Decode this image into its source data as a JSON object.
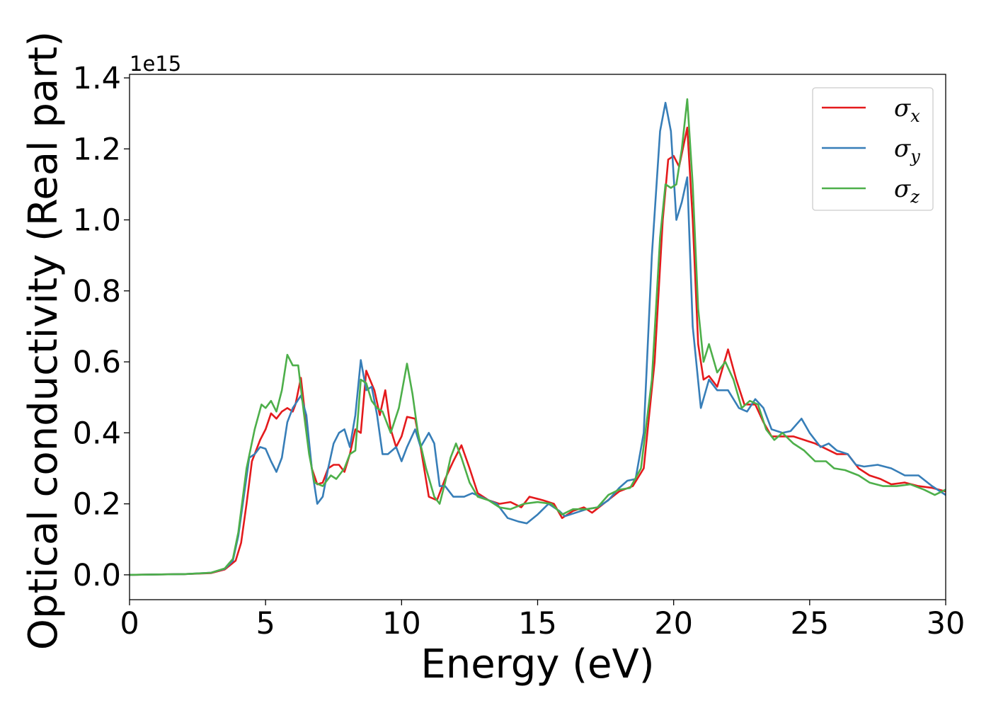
{
  "chart_data": {
    "type": "line",
    "xlabel": "Energy (eV)",
    "ylabel": "Optical conductivity (Real part)",
    "y_offset_text": "1e15",
    "xlim": [
      0,
      30
    ],
    "ylim": [
      -0.07,
      1.41
    ],
    "x_ticks": [
      0,
      5,
      10,
      15,
      20,
      25,
      30
    ],
    "x_tick_labels": [
      "0",
      "5",
      "10",
      "15",
      "20",
      "25",
      "30"
    ],
    "y_ticks": [
      0.0,
      0.2,
      0.4,
      0.6,
      0.8,
      1.0,
      1.2,
      1.4
    ],
    "y_tick_labels": [
      "0.0",
      "0.2",
      "0.4",
      "0.6",
      "0.8",
      "1.0",
      "1.2",
      "1.4"
    ],
    "grid": false,
    "legend_position": "top-right",
    "series": [
      {
        "name": "σx",
        "symbol": "σ",
        "subscript": "x",
        "color": "#e41a1c",
        "points": [
          [
            0,
            0
          ],
          [
            2,
            0.002
          ],
          [
            3,
            0.005
          ],
          [
            3.5,
            0.015
          ],
          [
            3.9,
            0.04
          ],
          [
            4.1,
            0.09
          ],
          [
            4.3,
            0.2
          ],
          [
            4.5,
            0.32
          ],
          [
            4.8,
            0.38
          ],
          [
            5.0,
            0.41
          ],
          [
            5.2,
            0.455
          ],
          [
            5.4,
            0.44
          ],
          [
            5.6,
            0.46
          ],
          [
            5.8,
            0.47
          ],
          [
            6.0,
            0.46
          ],
          [
            6.1,
            0.48
          ],
          [
            6.3,
            0.555
          ],
          [
            6.5,
            0.42
          ],
          [
            6.7,
            0.3
          ],
          [
            6.9,
            0.255
          ],
          [
            7.1,
            0.26
          ],
          [
            7.3,
            0.3
          ],
          [
            7.5,
            0.31
          ],
          [
            7.7,
            0.31
          ],
          [
            7.9,
            0.29
          ],
          [
            8.1,
            0.34
          ],
          [
            8.3,
            0.41
          ],
          [
            8.5,
            0.4
          ],
          [
            8.7,
            0.575
          ],
          [
            9.0,
            0.52
          ],
          [
            9.2,
            0.45
          ],
          [
            9.4,
            0.52
          ],
          [
            9.6,
            0.41
          ],
          [
            9.8,
            0.36
          ],
          [
            10.0,
            0.39
          ],
          [
            10.2,
            0.445
          ],
          [
            10.5,
            0.44
          ],
          [
            10.7,
            0.36
          ],
          [
            11.0,
            0.22
          ],
          [
            11.3,
            0.21
          ],
          [
            11.6,
            0.27
          ],
          [
            11.9,
            0.32
          ],
          [
            12.2,
            0.365
          ],
          [
            12.5,
            0.3
          ],
          [
            12.8,
            0.23
          ],
          [
            13.2,
            0.21
          ],
          [
            13.6,
            0.2
          ],
          [
            14.0,
            0.205
          ],
          [
            14.4,
            0.19
          ],
          [
            14.7,
            0.22
          ],
          [
            15.2,
            0.21
          ],
          [
            15.6,
            0.2
          ],
          [
            15.9,
            0.16
          ],
          [
            16.3,
            0.18
          ],
          [
            16.7,
            0.19
          ],
          [
            17.0,
            0.175
          ],
          [
            17.5,
            0.205
          ],
          [
            18.0,
            0.235
          ],
          [
            18.5,
            0.25
          ],
          [
            18.9,
            0.3
          ],
          [
            19.3,
            0.6
          ],
          [
            19.6,
            1.0
          ],
          [
            19.8,
            1.17
          ],
          [
            20.0,
            1.18
          ],
          [
            20.2,
            1.15
          ],
          [
            20.5,
            1.26
          ],
          [
            20.7,
            1.0
          ],
          [
            20.9,
            0.65
          ],
          [
            21.1,
            0.55
          ],
          [
            21.3,
            0.56
          ],
          [
            21.6,
            0.53
          ],
          [
            22.0,
            0.635
          ],
          [
            22.3,
            0.55
          ],
          [
            22.6,
            0.48
          ],
          [
            23.0,
            0.48
          ],
          [
            23.3,
            0.43
          ],
          [
            23.6,
            0.39
          ],
          [
            24.0,
            0.39
          ],
          [
            24.4,
            0.39
          ],
          [
            24.8,
            0.38
          ],
          [
            25.2,
            0.37
          ],
          [
            25.6,
            0.355
          ],
          [
            26.0,
            0.34
          ],
          [
            26.4,
            0.34
          ],
          [
            26.8,
            0.3
          ],
          [
            27.2,
            0.28
          ],
          [
            27.6,
            0.27
          ],
          [
            28.0,
            0.255
          ],
          [
            28.5,
            0.26
          ],
          [
            29.0,
            0.25
          ],
          [
            29.5,
            0.245
          ],
          [
            30.0,
            0.235
          ]
        ]
      },
      {
        "name": "σy",
        "symbol": "σ",
        "subscript": "y",
        "color": "#377eb8",
        "points": [
          [
            0,
            0
          ],
          [
            2,
            0.002
          ],
          [
            3,
            0.006
          ],
          [
            3.5,
            0.017
          ],
          [
            3.8,
            0.04
          ],
          [
            4.0,
            0.11
          ],
          [
            4.2,
            0.22
          ],
          [
            4.4,
            0.33
          ],
          [
            4.6,
            0.34
          ],
          [
            4.8,
            0.36
          ],
          [
            5.0,
            0.355
          ],
          [
            5.2,
            0.32
          ],
          [
            5.4,
            0.29
          ],
          [
            5.6,
            0.33
          ],
          [
            5.8,
            0.43
          ],
          [
            6.0,
            0.47
          ],
          [
            6.3,
            0.505
          ],
          [
            6.5,
            0.45
          ],
          [
            6.7,
            0.3
          ],
          [
            6.9,
            0.2
          ],
          [
            7.1,
            0.22
          ],
          [
            7.3,
            0.3
          ],
          [
            7.5,
            0.37
          ],
          [
            7.7,
            0.4
          ],
          [
            7.9,
            0.41
          ],
          [
            8.1,
            0.36
          ],
          [
            8.3,
            0.45
          ],
          [
            8.5,
            0.605
          ],
          [
            8.7,
            0.52
          ],
          [
            8.9,
            0.53
          ],
          [
            9.1,
            0.45
          ],
          [
            9.3,
            0.34
          ],
          [
            9.5,
            0.34
          ],
          [
            9.8,
            0.36
          ],
          [
            10.0,
            0.32
          ],
          [
            10.2,
            0.36
          ],
          [
            10.5,
            0.41
          ],
          [
            10.7,
            0.36
          ],
          [
            11.0,
            0.4
          ],
          [
            11.2,
            0.37
          ],
          [
            11.4,
            0.25
          ],
          [
            11.6,
            0.25
          ],
          [
            11.9,
            0.22
          ],
          [
            12.3,
            0.22
          ],
          [
            12.6,
            0.23
          ],
          [
            12.9,
            0.22
          ],
          [
            13.2,
            0.21
          ],
          [
            13.5,
            0.2
          ],
          [
            13.9,
            0.16
          ],
          [
            14.3,
            0.15
          ],
          [
            14.6,
            0.145
          ],
          [
            15.0,
            0.17
          ],
          [
            15.4,
            0.2
          ],
          [
            15.8,
            0.18
          ],
          [
            16.0,
            0.165
          ],
          [
            16.4,
            0.175
          ],
          [
            16.8,
            0.185
          ],
          [
            17.2,
            0.19
          ],
          [
            17.6,
            0.21
          ],
          [
            18.0,
            0.245
          ],
          [
            18.3,
            0.265
          ],
          [
            18.6,
            0.27
          ],
          [
            18.9,
            0.4
          ],
          [
            19.2,
            0.9
          ],
          [
            19.5,
            1.25
          ],
          [
            19.7,
            1.33
          ],
          [
            19.9,
            1.25
          ],
          [
            20.1,
            1.0
          ],
          [
            20.3,
            1.05
          ],
          [
            20.5,
            1.12
          ],
          [
            20.7,
            0.7
          ],
          [
            21.0,
            0.47
          ],
          [
            21.3,
            0.55
          ],
          [
            21.6,
            0.52
          ],
          [
            22.0,
            0.52
          ],
          [
            22.4,
            0.47
          ],
          [
            22.7,
            0.46
          ],
          [
            23.0,
            0.495
          ],
          [
            23.3,
            0.47
          ],
          [
            23.6,
            0.41
          ],
          [
            24.0,
            0.4
          ],
          [
            24.3,
            0.405
          ],
          [
            24.7,
            0.44
          ],
          [
            25.0,
            0.4
          ],
          [
            25.4,
            0.36
          ],
          [
            25.7,
            0.37
          ],
          [
            26.0,
            0.35
          ],
          [
            26.4,
            0.34
          ],
          [
            26.7,
            0.31
          ],
          [
            27.0,
            0.305
          ],
          [
            27.5,
            0.31
          ],
          [
            28.0,
            0.3
          ],
          [
            28.5,
            0.28
          ],
          [
            29.0,
            0.28
          ],
          [
            29.5,
            0.25
          ],
          [
            30.0,
            0.225
          ]
        ]
      },
      {
        "name": "σz",
        "symbol": "σ",
        "subscript": "z",
        "color": "#4daf4a",
        "points": [
          [
            0,
            0
          ],
          [
            2,
            0.002
          ],
          [
            3,
            0.006
          ],
          [
            3.5,
            0.018
          ],
          [
            3.8,
            0.045
          ],
          [
            4.0,
            0.12
          ],
          [
            4.3,
            0.3
          ],
          [
            4.6,
            0.41
          ],
          [
            4.85,
            0.48
          ],
          [
            5.0,
            0.47
          ],
          [
            5.2,
            0.49
          ],
          [
            5.4,
            0.46
          ],
          [
            5.6,
            0.52
          ],
          [
            5.8,
            0.62
          ],
          [
            6.0,
            0.59
          ],
          [
            6.2,
            0.59
          ],
          [
            6.4,
            0.46
          ],
          [
            6.6,
            0.34
          ],
          [
            6.8,
            0.26
          ],
          [
            7.1,
            0.25
          ],
          [
            7.4,
            0.28
          ],
          [
            7.6,
            0.27
          ],
          [
            7.9,
            0.3
          ],
          [
            8.1,
            0.34
          ],
          [
            8.3,
            0.35
          ],
          [
            8.5,
            0.55
          ],
          [
            8.7,
            0.54
          ],
          [
            8.9,
            0.49
          ],
          [
            9.1,
            0.47
          ],
          [
            9.3,
            0.46
          ],
          [
            9.6,
            0.4
          ],
          [
            9.9,
            0.47
          ],
          [
            10.2,
            0.595
          ],
          [
            10.4,
            0.51
          ],
          [
            10.6,
            0.4
          ],
          [
            10.9,
            0.3
          ],
          [
            11.2,
            0.22
          ],
          [
            11.4,
            0.2
          ],
          [
            11.6,
            0.26
          ],
          [
            11.8,
            0.33
          ],
          [
            12.0,
            0.37
          ],
          [
            12.2,
            0.33
          ],
          [
            12.5,
            0.26
          ],
          [
            12.8,
            0.22
          ],
          [
            13.2,
            0.21
          ],
          [
            13.6,
            0.19
          ],
          [
            14.0,
            0.185
          ],
          [
            14.5,
            0.2
          ],
          [
            15.0,
            0.205
          ],
          [
            15.5,
            0.2
          ],
          [
            15.9,
            0.17
          ],
          [
            16.3,
            0.185
          ],
          [
            16.8,
            0.185
          ],
          [
            17.2,
            0.19
          ],
          [
            17.6,
            0.225
          ],
          [
            18.0,
            0.24
          ],
          [
            18.4,
            0.245
          ],
          [
            18.8,
            0.3
          ],
          [
            19.2,
            0.55
          ],
          [
            19.5,
            0.95
          ],
          [
            19.7,
            1.1
          ],
          [
            19.9,
            1.09
          ],
          [
            20.1,
            1.1
          ],
          [
            20.3,
            1.2
          ],
          [
            20.5,
            1.34
          ],
          [
            20.7,
            1.1
          ],
          [
            20.9,
            0.75
          ],
          [
            21.1,
            0.6
          ],
          [
            21.3,
            0.65
          ],
          [
            21.6,
            0.57
          ],
          [
            21.9,
            0.6
          ],
          [
            22.2,
            0.55
          ],
          [
            22.5,
            0.47
          ],
          [
            22.8,
            0.49
          ],
          [
            23.1,
            0.48
          ],
          [
            23.4,
            0.41
          ],
          [
            23.7,
            0.38
          ],
          [
            24.0,
            0.4
          ],
          [
            24.4,
            0.37
          ],
          [
            24.8,
            0.35
          ],
          [
            25.2,
            0.32
          ],
          [
            25.6,
            0.32
          ],
          [
            25.9,
            0.3
          ],
          [
            26.3,
            0.295
          ],
          [
            26.8,
            0.28
          ],
          [
            27.2,
            0.26
          ],
          [
            27.7,
            0.25
          ],
          [
            28.2,
            0.25
          ],
          [
            28.7,
            0.255
          ],
          [
            29.2,
            0.24
          ],
          [
            29.6,
            0.225
          ],
          [
            30.0,
            0.24
          ]
        ]
      }
    ]
  }
}
